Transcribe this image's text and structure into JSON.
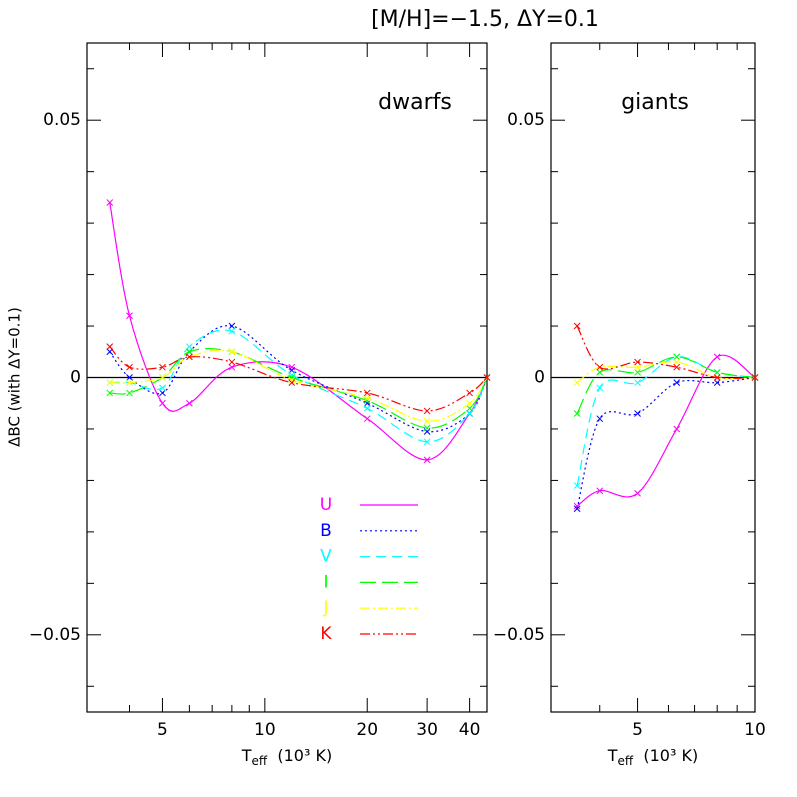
{
  "title": "[M/H]=−1.5, ΔY=0.1",
  "ylabel": "ΔBC (with ΔY=0.1)",
  "chart_data": [
    {
      "type": "line",
      "annotation": "dwarfs",
      "xlabel": {
        "main": "T",
        "sub": "eff",
        "rest": "(10³ K)"
      },
      "xlog": true,
      "xlim": [
        3,
        45
      ],
      "xticks": [
        5,
        10,
        20,
        30,
        40
      ],
      "xminorticks": [
        3,
        4,
        6,
        7,
        8,
        9
      ],
      "ylim": [
        -0.065,
        0.065
      ],
      "yticks": [
        {
          "value": -0.05,
          "label": "−0.05"
        },
        0,
        0.05
      ],
      "yminorticks": [
        -0.06,
        -0.04,
        -0.03,
        -0.02,
        -0.01,
        0.01,
        0.02,
        0.03,
        0.04,
        0.06
      ],
      "hline": 0,
      "legend": true,
      "x": [
        3.5,
        4,
        5,
        6,
        8,
        12,
        20,
        30,
        40,
        45
      ],
      "series": [
        {
          "name": "U",
          "color": "#ff00ff",
          "values": [
            0.034,
            0.012,
            -0.005,
            -0.005,
            0.002,
            0.002,
            -0.008,
            -0.016,
            -0.007,
            0
          ]
        },
        {
          "name": "B",
          "color": "#0000ff",
          "values": [
            0.005,
            0,
            -0.003,
            0.005,
            0.01,
            0.0014,
            -0.005,
            -0.0105,
            -0.007,
            0
          ]
        },
        {
          "name": "V",
          "color": "#00ffff",
          "values": [
            -0.001,
            -0.001,
            -0.002,
            0.006,
            0.009,
            0.0005,
            -0.006,
            -0.0125,
            -0.007,
            0
          ]
        },
        {
          "name": "I",
          "color": "#00ff00",
          "values": [
            -0.003,
            -0.003,
            0,
            0.005,
            0.005,
            0,
            -0.0045,
            -0.0098,
            -0.006,
            0
          ]
        },
        {
          "name": "J",
          "color": "#ffff00",
          "values": [
            -0.001,
            -0.001,
            0,
            0.004,
            0.005,
            -0.0005,
            -0.004,
            -0.0085,
            -0.005,
            0
          ]
        },
        {
          "name": "K",
          "color": "#ff0000",
          "values": [
            0.006,
            0.002,
            0.002,
            0.004,
            0.003,
            -0.001,
            -0.003,
            -0.0065,
            -0.003,
            0
          ]
        }
      ]
    },
    {
      "type": "line",
      "annotation": "giants",
      "xlabel": {
        "main": "T",
        "sub": "eff",
        "rest": "(10³ K)"
      },
      "xlog": true,
      "xlim": [
        3,
        10
      ],
      "xticks": [
        5,
        10
      ],
      "xminorticks": [
        3,
        4,
        6,
        7,
        8,
        9
      ],
      "ylim": [
        -0.065,
        0.065
      ],
      "yticks": [
        {
          "value": -0.05,
          "label": "−0.05"
        },
        0,
        0.05
      ],
      "yminorticks": [
        -0.06,
        -0.04,
        -0.03,
        -0.02,
        -0.01,
        0.01,
        0.02,
        0.03,
        0.04,
        0.06
      ],
      "hline": 0,
      "x": [
        3.5,
        4,
        5,
        6.3,
        8,
        10
      ],
      "series": [
        {
          "color": "#ff00ff",
          "values": [
            -0.025,
            -0.022,
            -0.0225,
            -0.01,
            0.004,
            0
          ]
        },
        {
          "color": "#0000ff",
          "values": [
            -0.0255,
            -0.008,
            -0.007,
            -0.001,
            -0.001,
            0
          ]
        },
        {
          "color": "#00ffff",
          "values": [
            -0.021,
            -0.002,
            -0.001,
            0.004,
            0.001,
            0
          ]
        },
        {
          "color": "#00ff00",
          "values": [
            -0.007,
            0.001,
            0.001,
            0.004,
            0.001,
            0
          ]
        },
        {
          "color": "#ffff00",
          "values": [
            -0.001,
            0.002,
            0.002,
            0.003,
            0,
            0
          ]
        },
        {
          "color": "#ff0000",
          "values": [
            0.01,
            0.002,
            0.003,
            0.002,
            0,
            0
          ]
        }
      ]
    }
  ]
}
